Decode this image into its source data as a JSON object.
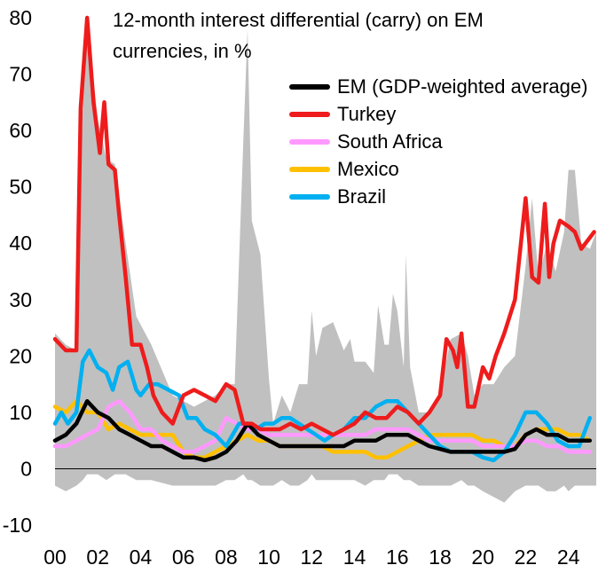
{
  "chart_data": {
    "type": "line",
    "title": [
      "12-month interest differential (carry) on EM",
      "currencies, in %"
    ],
    "xlabel": "",
    "ylabel": "",
    "x_range": [
      2000,
      2025.3
    ],
    "ylim": [
      -10,
      80
    ],
    "y_ticks": [
      -10,
      0,
      10,
      20,
      30,
      40,
      50,
      60,
      70,
      80
    ],
    "x_ticks": [
      {
        "label": "00",
        "x": 2000
      },
      {
        "label": "02",
        "x": 2002
      },
      {
        "label": "04",
        "x": 2004
      },
      {
        "label": "06",
        "x": 2006
      },
      {
        "label": "08",
        "x": 2008
      },
      {
        "label": "10",
        "x": 2010
      },
      {
        "label": "12",
        "x": 2012
      },
      {
        "label": "14",
        "x": 2014
      },
      {
        "label": "16",
        "x": 2016
      },
      {
        "label": "18",
        "x": 2018
      },
      {
        "label": "20",
        "x": 2020
      },
      {
        "label": "22",
        "x": 2022
      },
      {
        "label": "24",
        "x": 2024
      }
    ],
    "legend_position": "top-right",
    "range_band": {
      "color": "#c0c0c0",
      "x": [
        2000,
        2000.5,
        2001,
        2001.3,
        2001.5,
        2002,
        2002.4,
        2002.8,
        2003.3,
        2003.8,
        2004.5,
        2005.5,
        2006.5,
        2007.5,
        2008,
        2008.4,
        2008.8,
        2009,
        2009.2,
        2009.6,
        2010,
        2010.2,
        2010.6,
        2011,
        2011.4,
        2011.8,
        2012,
        2012.2,
        2012.5,
        2013,
        2013.5,
        2013.8,
        2014,
        2014.5,
        2014.9,
        2015.1,
        2015.4,
        2015.6,
        2015.8,
        2016,
        2016.3,
        2016.4,
        2016.6,
        2017,
        2017.6,
        2018,
        2018.5,
        2019,
        2019.3,
        2019.6,
        2020,
        2020.5,
        2021,
        2021.5,
        2022,
        2022.3,
        2022.6,
        2023,
        2023.4,
        2023.8,
        2024,
        2024.3,
        2024.6,
        2025,
        2025.3
      ],
      "upper": [
        24,
        22,
        21,
        64,
        80,
        62,
        55,
        54,
        40,
        27,
        22,
        13,
        11,
        13,
        15,
        15,
        58,
        78,
        44,
        38,
        16,
        8,
        13,
        10,
        15,
        15,
        28,
        20,
        25,
        26,
        21,
        23,
        19,
        19,
        17,
        29,
        22,
        22,
        31,
        28,
        18,
        38,
        18,
        10,
        10,
        14,
        23,
        24,
        20,
        13,
        15,
        15,
        18,
        20,
        36,
        48,
        34,
        40,
        35,
        42,
        53,
        53,
        40,
        39,
        42
      ],
      "lower": [
        -3,
        -4,
        -3,
        -2,
        -1,
        -1,
        -2,
        -1,
        -1,
        -2,
        -2,
        -3,
        -3,
        -3,
        -2,
        -2,
        -1,
        -2,
        -2,
        -3,
        -3,
        -3,
        -2,
        -3,
        -3,
        -2,
        -1,
        -2,
        -2,
        -2,
        -2,
        -2,
        -2,
        -3,
        -2,
        -2,
        -2,
        -1,
        -1,
        -1,
        -2,
        -2,
        -2,
        -3,
        -3,
        -3,
        -3,
        -2,
        -3,
        -3,
        -4,
        -5,
        -6,
        -4,
        -3,
        -3,
        -3,
        -4,
        -4,
        -3,
        -4,
        -3,
        -3,
        -3,
        -3
      ]
    },
    "series": [
      {
        "name": "EM (GDP-weighted average)",
        "color": "#000000",
        "x": [
          2000,
          2000.5,
          2001,
          2001.5,
          2002,
          2002.5,
          2003,
          2003.5,
          2004,
          2004.5,
          2005,
          2005.5,
          2006,
          2006.5,
          2007,
          2007.5,
          2008,
          2008.5,
          2009,
          2009.5,
          2010,
          2010.5,
          2011,
          2011.5,
          2012,
          2012.5,
          2013,
          2013.5,
          2014,
          2014.5,
          2015,
          2015.5,
          2016,
          2016.5,
          2017,
          2017.5,
          2018,
          2018.5,
          2019,
          2019.5,
          2020,
          2020.5,
          2021,
          2021.5,
          2022,
          2022.5,
          2023,
          2023.5,
          2024,
          2024.5,
          2025
        ],
        "values": [
          5,
          6,
          8,
          12,
          10,
          9,
          7,
          6,
          5,
          4,
          4,
          3,
          2,
          2,
          1.5,
          2,
          3,
          5,
          8,
          6,
          5,
          4,
          4,
          4,
          4,
          4,
          4,
          4,
          5,
          5,
          5,
          6,
          6,
          6,
          5,
          4,
          3.5,
          3,
          3,
          3,
          3,
          3,
          3,
          3.5,
          6,
          7,
          6,
          6,
          5,
          5,
          5
        ]
      },
      {
        "name": "Turkey",
        "color": "#ee1c1c",
        "x": [
          2000,
          2000.5,
          2001,
          2001.2,
          2001.5,
          2001.8,
          2002.1,
          2002.3,
          2002.5,
          2002.8,
          2003,
          2003.3,
          2003.6,
          2004,
          2004.3,
          2004.6,
          2005,
          2005.5,
          2006,
          2006.5,
          2007,
          2007.5,
          2008,
          2008.4,
          2008.8,
          2009.2,
          2009.6,
          2010,
          2010.5,
          2011,
          2011.5,
          2012,
          2012.5,
          2013,
          2013.5,
          2014,
          2014.5,
          2015,
          2015.5,
          2016,
          2016.5,
          2017,
          2017.5,
          2018,
          2018.3,
          2018.6,
          2018.8,
          2019,
          2019.3,
          2019.6,
          2020,
          2020.3,
          2020.6,
          2021,
          2021.5,
          2022,
          2022.3,
          2022.6,
          2022.9,
          2023.1,
          2023.3,
          2023.6,
          2024,
          2024.3,
          2024.6,
          2025,
          2025.2
        ],
        "values": [
          23,
          21,
          21,
          64,
          80,
          65,
          56,
          65,
          54,
          53,
          45,
          34,
          22,
          22,
          18,
          13,
          10,
          8,
          13,
          14,
          13,
          12,
          15,
          14,
          8,
          8,
          7,
          7,
          7,
          8,
          7,
          8,
          7,
          6,
          7,
          8,
          10,
          9,
          9,
          11,
          10,
          8,
          10,
          13,
          23,
          21,
          18,
          24,
          11,
          11,
          18,
          16,
          20,
          24,
          30,
          48,
          34,
          33,
          47,
          34,
          40,
          44,
          43,
          42,
          39,
          41,
          42
        ]
      },
      {
        "name": "South Africa",
        "color": "#ff99ff",
        "x": [
          2000,
          2000.5,
          2001,
          2001.5,
          2002,
          2002.5,
          2003,
          2003.5,
          2004,
          2004.5,
          2005,
          2005.5,
          2006,
          2006.5,
          2007,
          2007.5,
          2008,
          2008.5,
          2009,
          2009.5,
          2010,
          2010.5,
          2011,
          2011.5,
          2012,
          2012.5,
          2013,
          2013.5,
          2014,
          2014.5,
          2015,
          2015.5,
          2016,
          2016.5,
          2017,
          2017.5,
          2018,
          2018.5,
          2019,
          2019.5,
          2020,
          2020.5,
          2021,
          2021.5,
          2022,
          2022.5,
          2023,
          2023.5,
          2024,
          2024.5,
          2025
        ],
        "values": [
          4,
          4,
          5,
          6,
          7,
          11,
          12,
          10,
          7,
          7,
          5,
          4,
          3,
          3,
          4,
          5,
          9,
          8,
          7,
          7,
          6,
          6,
          6,
          6,
          6,
          6,
          6,
          6,
          6,
          6,
          7,
          7,
          7,
          7,
          6,
          5,
          5,
          5,
          5,
          5,
          4,
          4,
          4,
          4,
          5,
          5,
          4,
          4,
          3,
          3,
          3
        ]
      },
      {
        "name": "Mexico",
        "color": "#ffc000",
        "x": [
          2000,
          2000.5,
          2001,
          2001.5,
          2002,
          2002.5,
          2003,
          2003.5,
          2004,
          2004.5,
          2005,
          2005.5,
          2006,
          2006.5,
          2007,
          2007.5,
          2008,
          2008.5,
          2009,
          2009.5,
          2010,
          2010.5,
          2011,
          2011.5,
          2012,
          2012.5,
          2013,
          2013.5,
          2014,
          2014.5,
          2015,
          2015.5,
          2016,
          2016.5,
          2017,
          2017.5,
          2018,
          2018.5,
          2019,
          2019.5,
          2020,
          2020.5,
          2021,
          2021.5,
          2022,
          2022.5,
          2023,
          2023.5,
          2024,
          2024.5,
          2025
        ],
        "values": [
          11,
          10,
          12,
          10,
          10,
          7,
          8,
          7,
          6,
          6,
          6,
          6,
          3,
          2,
          2,
          3,
          4,
          5,
          6,
          5,
          5,
          4,
          4,
          4,
          4,
          4,
          3,
          3,
          3,
          3,
          2,
          2,
          3,
          4,
          5,
          6,
          6,
          6,
          6,
          6,
          5,
          5,
          4,
          4,
          6,
          7,
          7,
          7,
          6,
          6,
          5
        ]
      },
      {
        "name": "Brazil",
        "color": "#00b0f0",
        "x": [
          2000,
          2000.3,
          2000.6,
          2001,
          2001.3,
          2001.6,
          2002,
          2002.4,
          2002.7,
          2003,
          2003.4,
          2003.8,
          2004,
          2004.4,
          2004.8,
          2005.3,
          2005.8,
          2006.2,
          2006.6,
          2007,
          2007.5,
          2008,
          2008.3,
          2008.6,
          2009,
          2009.4,
          2009.8,
          2010.2,
          2010.6,
          2011,
          2011.4,
          2011.8,
          2012.2,
          2012.6,
          2013,
          2013.5,
          2014,
          2014.5,
          2015,
          2015.5,
          2016,
          2016.5,
          2017,
          2017.5,
          2018,
          2018.5,
          2019,
          2019.5,
          2020,
          2020.5,
          2021,
          2021.5,
          2022,
          2022.5,
          2023,
          2023.5,
          2024,
          2024.5,
          2025
        ],
        "values": [
          8,
          10,
          8,
          10,
          19,
          21,
          18,
          17,
          14,
          18,
          19,
          14,
          13,
          15,
          15,
          14,
          13,
          9,
          9,
          7,
          6,
          4,
          6,
          8,
          8,
          7,
          8,
          8,
          9,
          9,
          8,
          7,
          6,
          5,
          6,
          7,
          9,
          9,
          11,
          12,
          12,
          10,
          8,
          6,
          4,
          3,
          3,
          3,
          2,
          1.5,
          3,
          6,
          10,
          10,
          8,
          5,
          4,
          4,
          9
        ]
      }
    ]
  }
}
